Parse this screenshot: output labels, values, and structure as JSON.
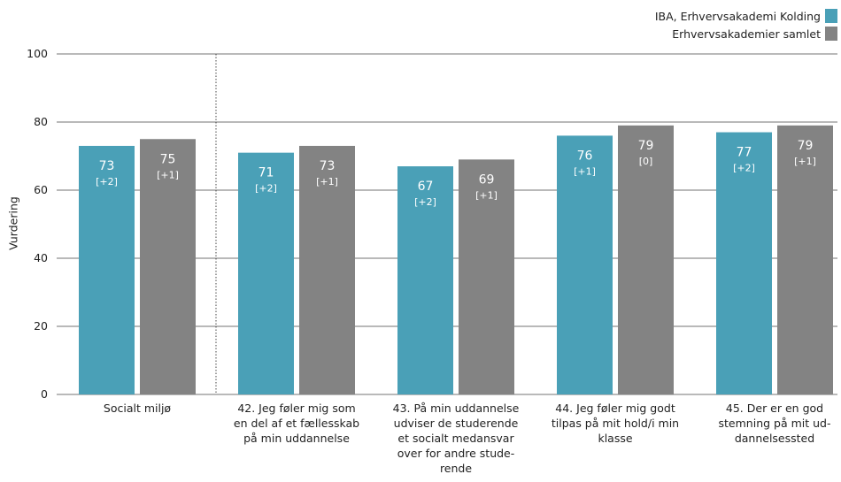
{
  "chart_data": {
    "type": "bar",
    "ylabel": "Vurdering",
    "ylim": [
      0,
      100
    ],
    "yticks": [
      0,
      20,
      40,
      60,
      80,
      100
    ],
    "grid": true,
    "legend_position": "top-right",
    "categories": [
      [
        "Socialt miljø"
      ],
      [
        "42. Jeg føler mig som",
        "en del af et fællesskab",
        "på min uddannelse"
      ],
      [
        "43. På min uddannelse",
        "udviser de studerende",
        "et socialt medansvar",
        "over for andre stude-",
        "rende"
      ],
      [
        "44. Jeg føler mig godt",
        "tilpas på mit hold/i min",
        "klasse"
      ],
      [
        "45. Der er en god",
        "stemning på mit ud-",
        "dannelsessted"
      ]
    ],
    "series": [
      {
        "name": "IBA, Erhvervsakademi Kolding",
        "color": "#4aa0b7",
        "values": [
          73,
          71,
          67,
          76,
          77
        ],
        "changes": [
          "[+2]",
          "[+2]",
          "[+2]",
          "[+1]",
          "[+2]"
        ]
      },
      {
        "name": "Erhvervsakademier samlet",
        "color": "#838383",
        "values": [
          75,
          73,
          69,
          79,
          79
        ],
        "changes": [
          "[+1]",
          "[+1]",
          "[+1]",
          "[0]",
          "[+1]"
        ]
      }
    ]
  }
}
